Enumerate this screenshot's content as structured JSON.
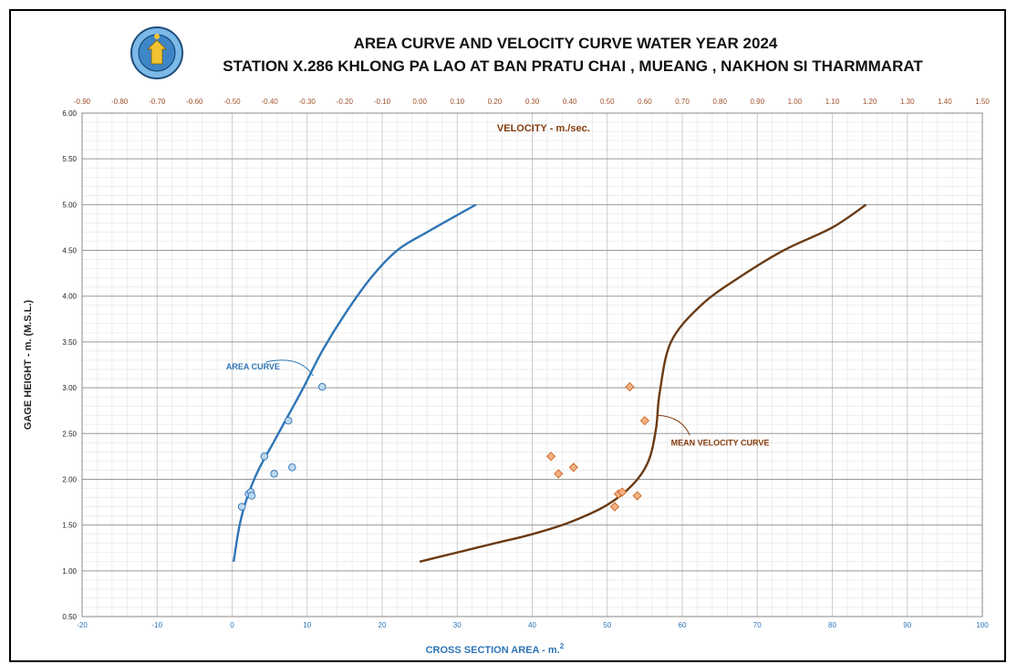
{
  "chart_data": {
    "type": "scatter",
    "title_line1": "AREA  CURVE  AND  VELOCITY  CURVE  WATER  YEAR  2024",
    "title_line2": "STATION  X.286  KHLONG PA LAO  AT  BAN PRATU CHAI , MUEANG , NAKHON SI THARMMARAT",
    "logo_text": "ROYAL IRRIGATION DEPARTMENT",
    "xlabel": "CROSS  SECTION  AREA  -  m.",
    "xlabel_sup": "2",
    "x2label": "VELOCITY  -  m./sec.",
    "ylabel": "GAGE  HEIGHT  -  m. (M.S.L.)",
    "xlim": [
      -20,
      100
    ],
    "x2lim": [
      -0.9,
      1.5
    ],
    "ylim": [
      0.5,
      6.0
    ],
    "x_ticks": [
      "-20",
      "-10",
      "0",
      "10",
      "20",
      "30",
      "40",
      "50",
      "60",
      "70",
      "80",
      "90",
      "100"
    ],
    "x_tick_values": [
      -20,
      -10,
      0,
      10,
      20,
      30,
      40,
      50,
      60,
      70,
      80,
      90,
      100
    ],
    "x2_ticks": [
      "-0.90",
      "-0.80",
      "-0.70",
      "-0.60",
      "-0.50",
      "-0.40",
      "-0.30",
      "-0.20",
      "-0.10",
      "0.00",
      "0.10",
      "0.20",
      "0.30",
      "0.40",
      "0.50",
      "0.60",
      "0.70",
      "0.80",
      "0.90",
      "1.00",
      "1.10",
      "1.20",
      "1.30",
      "1.40",
      "1.50"
    ],
    "x2_tick_values": [
      -0.9,
      -0.8,
      -0.7,
      -0.6,
      -0.5,
      -0.4,
      -0.3,
      -0.2,
      -0.1,
      0.0,
      0.1,
      0.2,
      0.3,
      0.4,
      0.5,
      0.6,
      0.7,
      0.8,
      0.9,
      1.0,
      1.1,
      1.2,
      1.3,
      1.4,
      1.5
    ],
    "y_ticks": [
      "0.50",
      "1.00",
      "1.50",
      "2.00",
      "2.50",
      "3.00",
      "3.50",
      "4.00",
      "4.50",
      "5.00",
      "5.50",
      "6.00"
    ],
    "y_tick_values": [
      0.5,
      1.0,
      1.5,
      2.0,
      2.5,
      3.0,
      3.5,
      4.0,
      4.5,
      5.0,
      5.5,
      6.0
    ],
    "grid": true,
    "colors": {
      "area": "#2e75b6",
      "area_point_fill": "#bdd7ee",
      "velocity": "#6b3a12",
      "velocity_point": "#f4b183",
      "velocity_point_stroke": "#c55a11",
      "axis_top_text": "#a0522d",
      "axis_bottom_text": "#2e75b6"
    },
    "annotations": [
      {
        "text": "AREA  CURVE",
        "series": "area"
      },
      {
        "text": "MEAN  VELOCITY  CURVE",
        "series": "velocity"
      }
    ],
    "series": [
      {
        "name": "AREA CURVE",
        "axis": "bottom",
        "kind": "line",
        "x": [
          0.2,
          1.0,
          2.0,
          3.5,
          5.5,
          7.5,
          9.5,
          12.0,
          15.0,
          18.5,
          22.0,
          26.0,
          32.5
        ],
        "y": [
          1.1,
          1.5,
          1.8,
          2.1,
          2.4,
          2.7,
          3.0,
          3.4,
          3.8,
          4.2,
          4.5,
          4.7,
          5.0
        ]
      },
      {
        "name": "AREA points",
        "axis": "bottom",
        "kind": "points",
        "x": [
          1.3,
          2.2,
          2.5,
          2.6,
          4.3,
          5.6,
          8.0,
          7.5,
          12.0
        ],
        "y": [
          1.7,
          1.84,
          1.86,
          1.82,
          2.25,
          2.06,
          2.13,
          2.64,
          3.01
        ]
      },
      {
        "name": "MEAN VELOCITY CURVE",
        "axis": "top",
        "kind": "line",
        "x": [
          0.0,
          0.1,
          0.2,
          0.3,
          0.4,
          0.5,
          0.57,
          0.61,
          0.63,
          0.64,
          0.67,
          0.75,
          0.85,
          0.97,
          1.1,
          1.19
        ],
        "y": [
          1.1,
          1.2,
          1.3,
          1.4,
          1.53,
          1.72,
          1.95,
          2.2,
          2.55,
          2.95,
          3.5,
          3.9,
          4.2,
          4.5,
          4.75,
          5.0
        ]
      },
      {
        "name": "VELOCITY points",
        "axis": "top",
        "kind": "points",
        "x": [
          0.35,
          0.37,
          0.41,
          0.52,
          0.53,
          0.54,
          0.58,
          0.56,
          0.6
        ],
        "y": [
          2.25,
          2.06,
          2.13,
          1.7,
          1.84,
          1.86,
          1.82,
          3.01,
          2.64
        ]
      }
    ]
  }
}
